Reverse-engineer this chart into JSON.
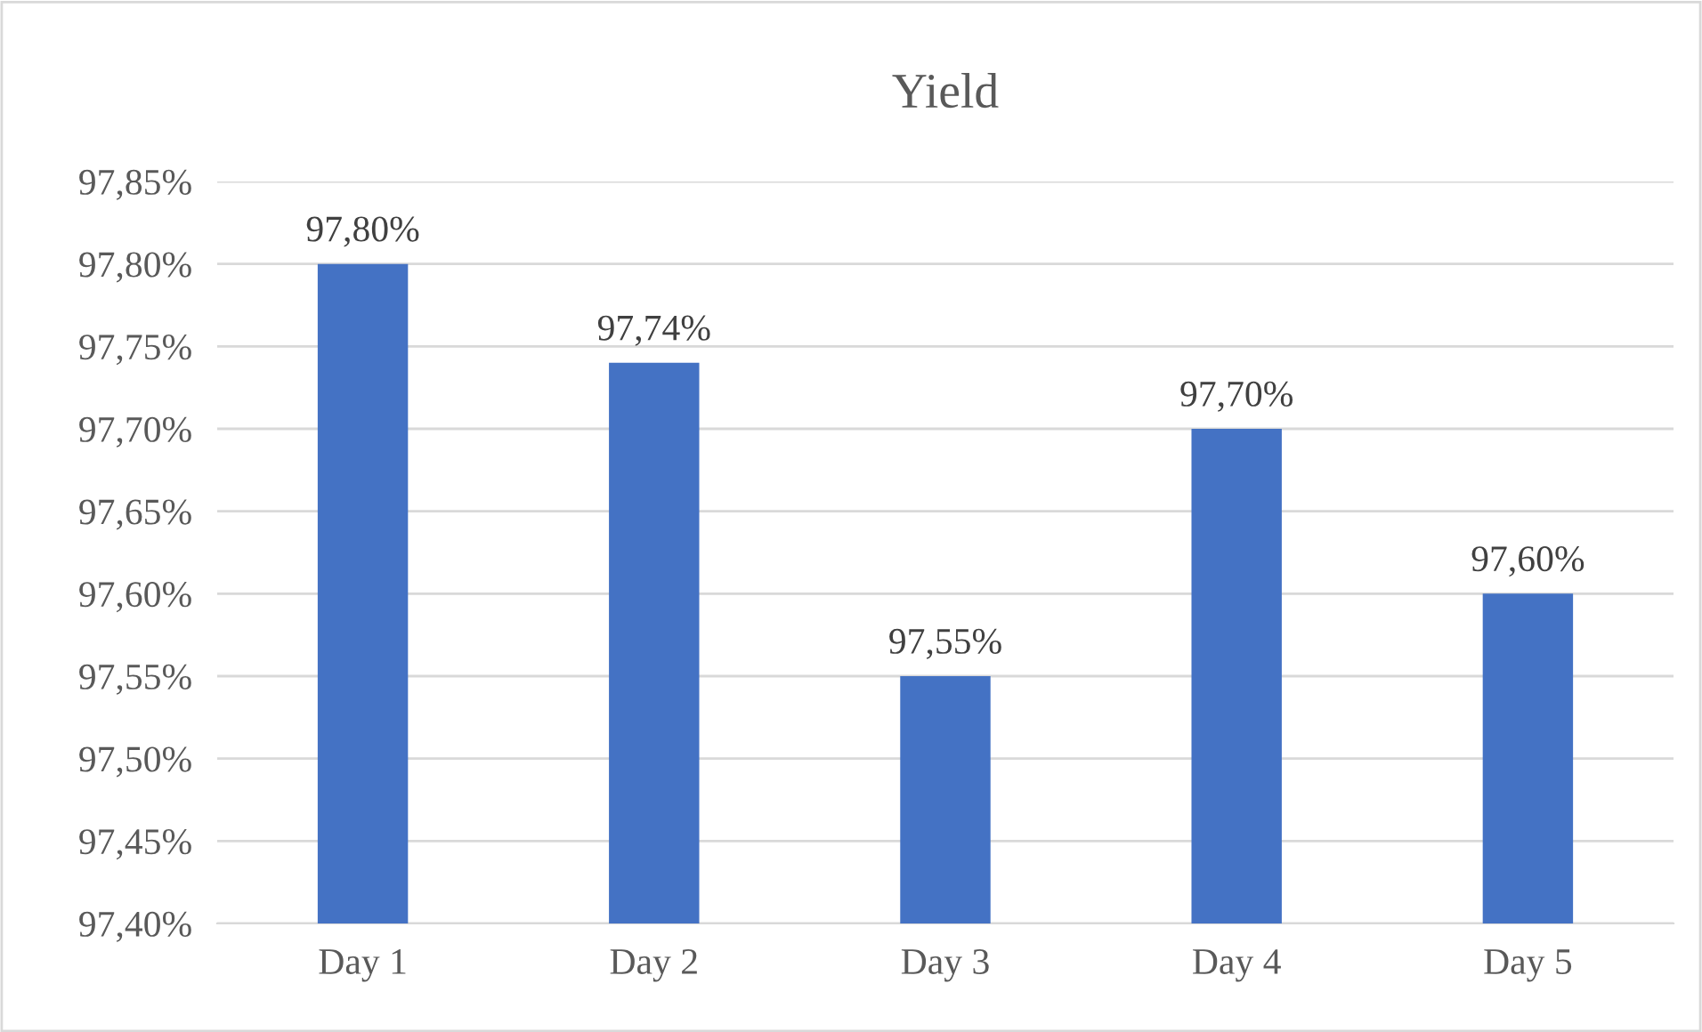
{
  "chart_data": {
    "type": "bar",
    "title": "Yield",
    "categories": [
      "Day 1",
      "Day 2",
      "Day 3",
      "Day 4",
      "Day 5"
    ],
    "values": [
      97.8,
      97.74,
      97.55,
      97.7,
      97.6
    ],
    "color": "#4472c4",
    "value_labels": [
      "97,80%",
      "97,74%",
      "97,55%",
      "97,70%",
      "97,60%"
    ],
    "ylim": [
      97.4,
      97.85
    ],
    "yticks": [
      {
        "value": 97.4,
        "label": "97,40%"
      },
      {
        "value": 97.45,
        "label": "97,45%"
      },
      {
        "value": 97.5,
        "label": "97,50%"
      },
      {
        "value": 97.55,
        "label": "97,55%"
      },
      {
        "value": 97.6,
        "label": "97,60%"
      },
      {
        "value": 97.65,
        "label": "97,65%"
      },
      {
        "value": 97.7,
        "label": "97,70%"
      },
      {
        "value": 97.75,
        "label": "97,75%"
      },
      {
        "value": 97.8,
        "label": "97,80%"
      },
      {
        "value": 97.85,
        "label": "97,85%"
      }
    ],
    "grid": "y"
  }
}
